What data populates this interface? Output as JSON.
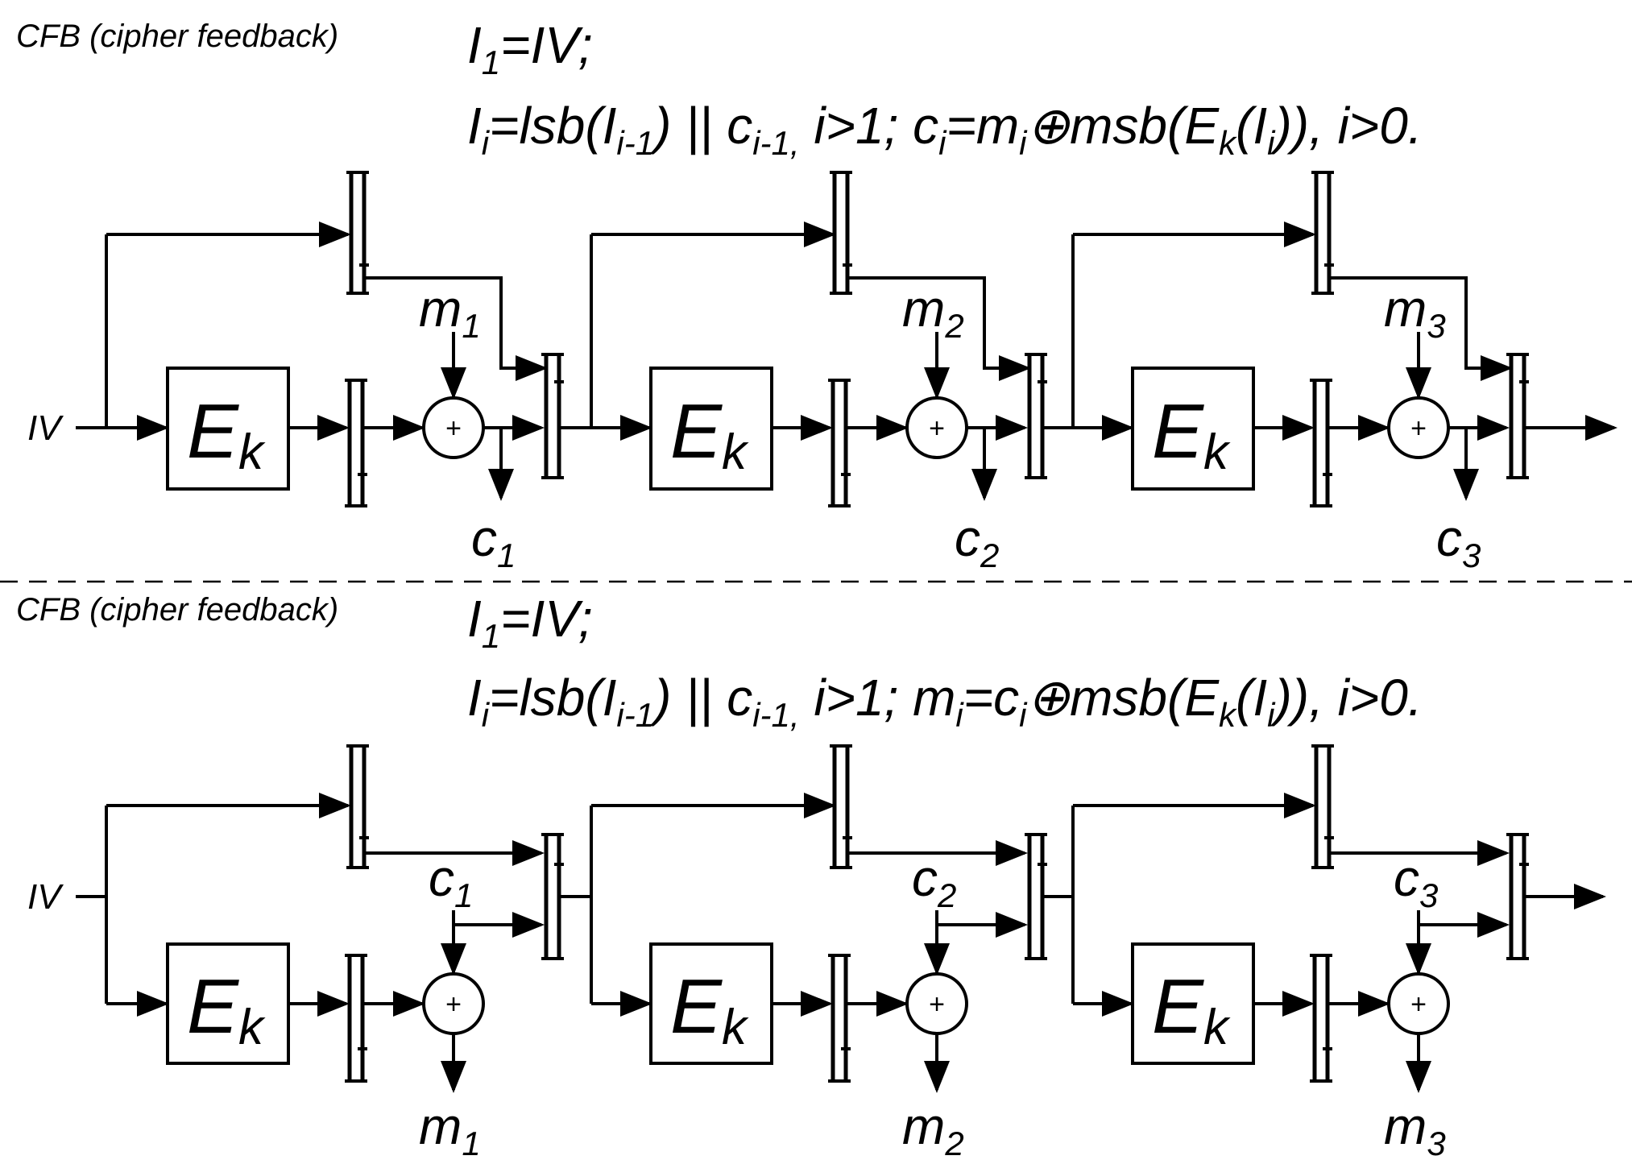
{
  "top": {
    "title": "CFB (cipher feedback)",
    "formula1": {
      "a": "I",
      "sub": "1",
      "b": "=IV;"
    },
    "formula2": {
      "p1": "I",
      "s1": "i",
      "p2": "=lsb(I",
      "s2": "i-1",
      "p3": ") || c",
      "s3": "i-1,",
      "p4": " i>1; c",
      "s4": "i",
      "p5": "=m",
      "s5": "i",
      "p6": "⊕msb(",
      "p7": "E",
      "s7": "k",
      "p8": "(I",
      "s8": "i",
      "p9": ")), i>0."
    },
    "iv_label": "IV",
    "blocks": [
      {
        "cipher": "E",
        "cipher_sub": "k",
        "input": "m",
        "input_sub": "1",
        "output": "c",
        "output_sub": "1"
      },
      {
        "cipher": "E",
        "cipher_sub": "k",
        "input": "m",
        "input_sub": "2",
        "output": "c",
        "output_sub": "2"
      },
      {
        "cipher": "E",
        "cipher_sub": "k",
        "input": "m",
        "input_sub": "3",
        "output": "c",
        "output_sub": "3"
      }
    ]
  },
  "bottom": {
    "title": "CFB (cipher feedback)",
    "formula1": {
      "a": "I",
      "sub": "1",
      "b": "=IV;"
    },
    "formula2": {
      "p1": "I",
      "s1": "i",
      "p2": "=lsb(I",
      "s2": "i-1",
      "p3": ") || c",
      "s3": "i-1,",
      "p4": " i>1; m",
      "s4": "i",
      "p5": "=c",
      "s5": "i",
      "p6": "⊕msb(",
      "p7": "E",
      "s7": "k",
      "p8": "(I",
      "s8": "i",
      "p9": ")), i>0."
    },
    "iv_label": "IV",
    "blocks": [
      {
        "cipher": "E",
        "cipher_sub": "k",
        "input": "c",
        "input_sub": "1",
        "output": "m",
        "output_sub": "1"
      },
      {
        "cipher": "E",
        "cipher_sub": "k",
        "input": "c",
        "input_sub": "2",
        "output": "m",
        "output_sub": "2"
      },
      {
        "cipher": "E",
        "cipher_sub": "k",
        "input": "c",
        "input_sub": "3",
        "output": "m",
        "output_sub": "3"
      }
    ]
  },
  "xor_symbol": "+"
}
